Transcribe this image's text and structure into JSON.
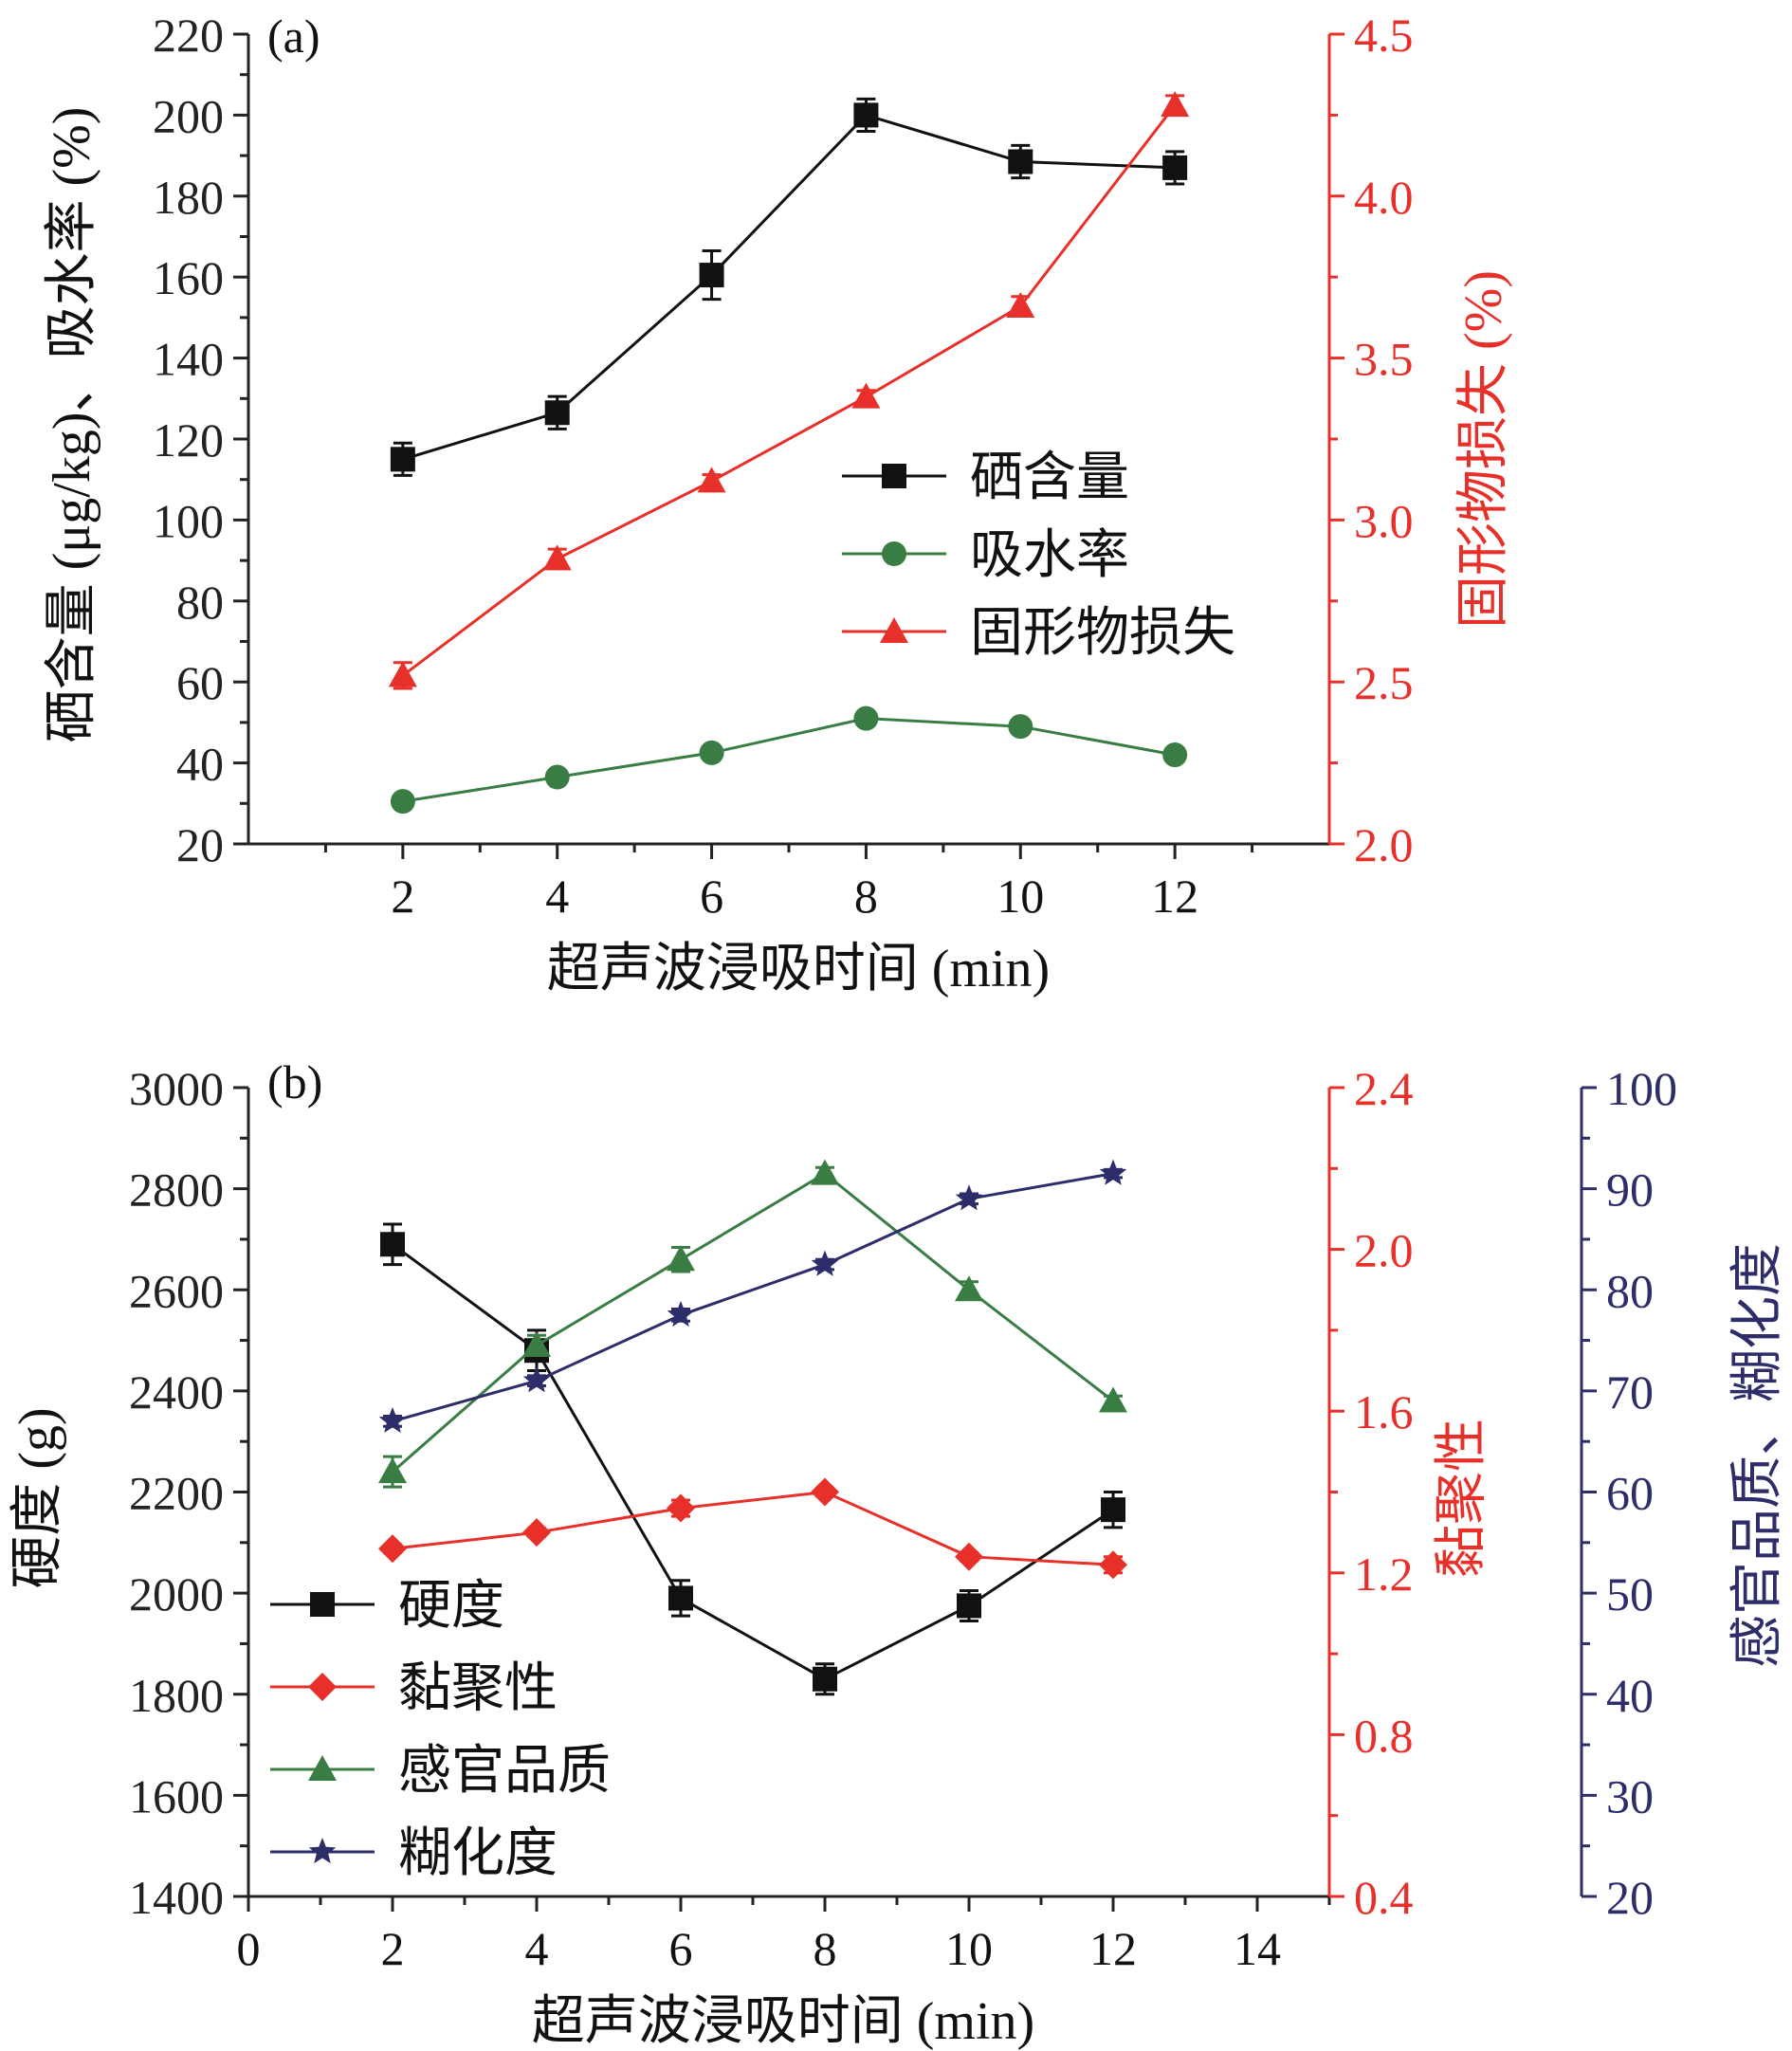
{
  "chart_data": [
    {
      "type": "line",
      "panel_label": "(a)",
      "xlabel": "超声波浸吸时间 (min)",
      "x": [
        2,
        4,
        6,
        8,
        10,
        12
      ],
      "x_ticks": [
        "2",
        "4",
        "6",
        "8",
        "10",
        "12"
      ],
      "xlim": [
        0,
        14
      ],
      "y_left": {
        "label": "硒含量 (μg/kg)、吸水率 (%)",
        "lim": [
          20,
          220
        ],
        "ticks": [
          "20",
          "40",
          "60",
          "80",
          "100",
          "120",
          "140",
          "160",
          "180",
          "200",
          "220"
        ],
        "color": "#222222"
      },
      "y_right": {
        "label": "固形物损失 (%)",
        "lim": [
          2.0,
          4.5
        ],
        "ticks": [
          "2.0",
          "2.5",
          "3.0",
          "3.5",
          "4.0",
          "4.5"
        ],
        "color": "#e8302a"
      },
      "series": [
        {
          "name": "硒含量",
          "axis": "left",
          "marker": "square",
          "color": "#111111",
          "values": [
            115,
            126.5,
            160.5,
            200,
            188.5,
            187
          ],
          "errors": [
            4,
            4,
            6,
            4,
            4,
            4
          ]
        },
        {
          "name": "吸水率",
          "axis": "left",
          "marker": "circle",
          "color": "#3a7d44",
          "values": [
            30.5,
            36.5,
            42.5,
            51,
            49,
            42
          ],
          "errors": [
            1,
            1,
            1,
            1,
            1,
            1
          ]
        },
        {
          "name": "固形物损失",
          "axis": "right",
          "marker": "triangle",
          "color": "#e8302a",
          "values": [
            2.52,
            2.88,
            3.12,
            3.38,
            3.66,
            4.28
          ],
          "errors": [
            0.04,
            0.03,
            0.02,
            0.02,
            0.03,
            0.03
          ]
        }
      ],
      "legend_location": "center-right"
    },
    {
      "type": "line",
      "panel_label": "(b)",
      "xlabel": "超声波浸吸时间 (min)",
      "x": [
        2,
        4,
        6,
        8,
        10,
        12
      ],
      "x_ticks": [
        "0",
        "2",
        "4",
        "6",
        "8",
        "10",
        "12",
        "14"
      ],
      "xlim": [
        0,
        15
      ],
      "y_left": {
        "label": "硬度 (g)",
        "lim": [
          1400,
          3000
        ],
        "ticks": [
          "1400",
          "1600",
          "1800",
          "2000",
          "2200",
          "2400",
          "2600",
          "2800",
          "3000"
        ],
        "color": "#222222"
      },
      "y_right": {
        "label": "黏聚性",
        "lim": [
          0.4,
          2.4
        ],
        "ticks": [
          "0.4",
          "0.8",
          "1.2",
          "1.6",
          "2.0",
          "2.4"
        ],
        "color": "#e8302a"
      },
      "y_right2": {
        "label": "感官品质、糊化度",
        "lim": [
          20,
          100
        ],
        "ticks": [
          "20",
          "30",
          "40",
          "50",
          "60",
          "70",
          "80",
          "90",
          "100"
        ],
        "color": "#2d2d6a"
      },
      "series": [
        {
          "name": "硬度",
          "axis": "left",
          "marker": "square",
          "color": "#111111",
          "values": [
            2690,
            2480,
            1990,
            1830,
            1975,
            2165
          ],
          "errors": [
            40,
            40,
            35,
            30,
            30,
            35
          ]
        },
        {
          "name": "黏聚性",
          "axis": "right",
          "marker": "diamond",
          "color": "#e8302a",
          "values": [
            1.26,
            1.3,
            1.36,
            1.4,
            1.24,
            1.22
          ],
          "errors": [
            0.01,
            0.01,
            0.02,
            0.01,
            0.01,
            0.02
          ]
        },
        {
          "name": "感官品质",
          "axis": "right2",
          "marker": "triangle",
          "color": "#3a7d44",
          "values": [
            62,
            74.5,
            83,
            91.5,
            80,
            69
          ],
          "errors": [
            1.5,
            1.0,
            1.2,
            0.6,
            0.8,
            0.5
          ]
        },
        {
          "name": "糊化度",
          "axis": "right2",
          "marker": "star",
          "color": "#2d2d6a",
          "values": [
            67,
            71,
            77.5,
            82.5,
            89,
            91.5
          ],
          "errors": [
            0.5,
            0.5,
            0.6,
            0.5,
            0.5,
            0.4
          ]
        }
      ],
      "legend_location": "bottom-left"
    }
  ]
}
